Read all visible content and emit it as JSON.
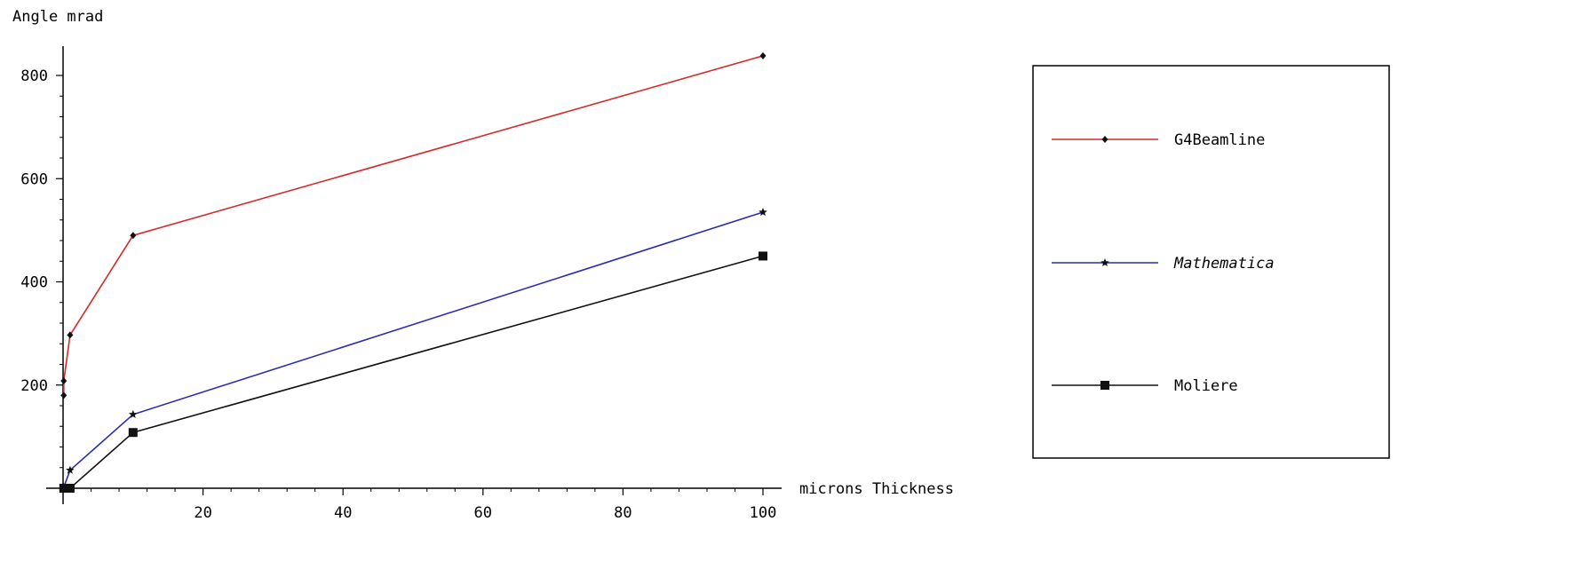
{
  "chart_data": {
    "type": "line",
    "xlabel": "microns Thickness",
    "ylabel": "Angle mrad",
    "xlim": [
      0,
      100
    ],
    "ylim": [
      0,
      800
    ],
    "xticks": [
      20,
      40,
      60,
      80,
      100
    ],
    "yticks": [
      200,
      400,
      600,
      800
    ],
    "series": [
      {
        "name": "G4Beamline",
        "color": "#d42a2a",
        "marker": "diamond",
        "x": [
          0.1,
          0.1,
          1,
          10,
          100
        ],
        "y": [
          180,
          208,
          297,
          490,
          838
        ]
      },
      {
        "name": "Mathematica",
        "color": "#2b2bb0",
        "marker": "star",
        "italic": true,
        "x": [
          0.1,
          1,
          10,
          100
        ],
        "y": [
          2,
          35,
          143,
          535
        ]
      },
      {
        "name": "Moliere",
        "color": "#111111",
        "marker": "square",
        "x": [
          0.1,
          1,
          10,
          100
        ],
        "y": [
          0,
          0,
          108,
          450
        ]
      }
    ],
    "legend": "right"
  }
}
